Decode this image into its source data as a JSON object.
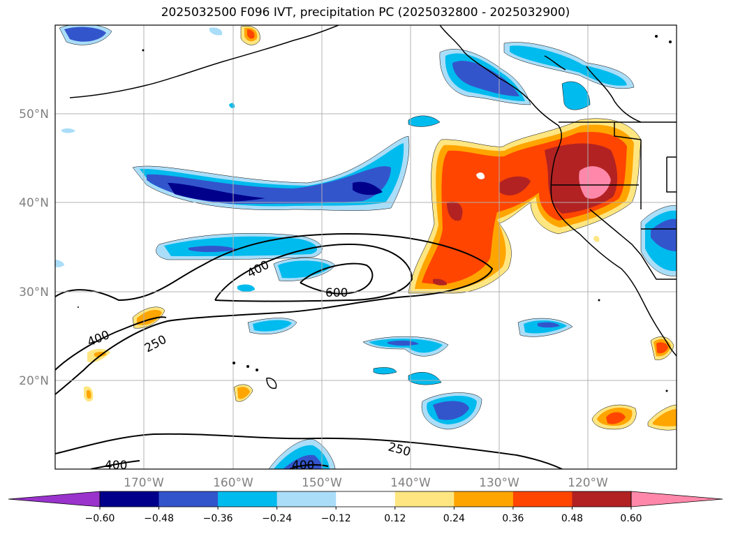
{
  "title": "2025032500 F096 IVT, precipitation PC (2025032800 - 2025032900)",
  "map": {
    "lat_labels": [
      "50°N",
      "40°N",
      "30°N",
      "20°N"
    ],
    "lon_labels": [
      "170°W",
      "160°W",
      "150°W",
      "140°W",
      "130°W",
      "120°W"
    ],
    "ivt_contour_labels": [
      "400",
      "400",
      "600",
      "250",
      "250",
      "400",
      "400"
    ],
    "ivt_contour_levels": [
      250,
      400,
      600
    ]
  },
  "colorbar": {
    "ticks": [
      "−0.60",
      "−0.48",
      "−0.36",
      "−0.24",
      "−0.12",
      "0.12",
      "0.24",
      "0.36",
      "0.48",
      "0.60"
    ],
    "colors": [
      "#9933cc",
      "#00008b",
      "#3355cc",
      "#00bbee",
      "#aaddf8",
      "#ffffff",
      "#ffe680",
      "#ffa500",
      "#ff4500",
      "#b22222",
      "#ff88aa"
    ],
    "extend": "both"
  },
  "colors": {
    "coast": "#000000",
    "grid": "#b0b0b0",
    "axis_label": "#808080"
  }
}
